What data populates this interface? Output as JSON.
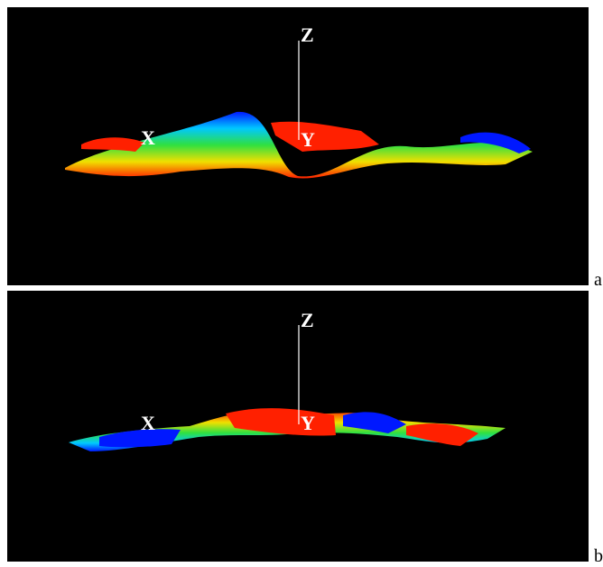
{
  "panels": [
    {
      "label": "a",
      "axes": {
        "z": "Z",
        "x": "X",
        "y": "Y"
      }
    },
    {
      "label": "b",
      "axes": {
        "z": "Z",
        "x": "X",
        "y": "Y"
      }
    }
  ]
}
